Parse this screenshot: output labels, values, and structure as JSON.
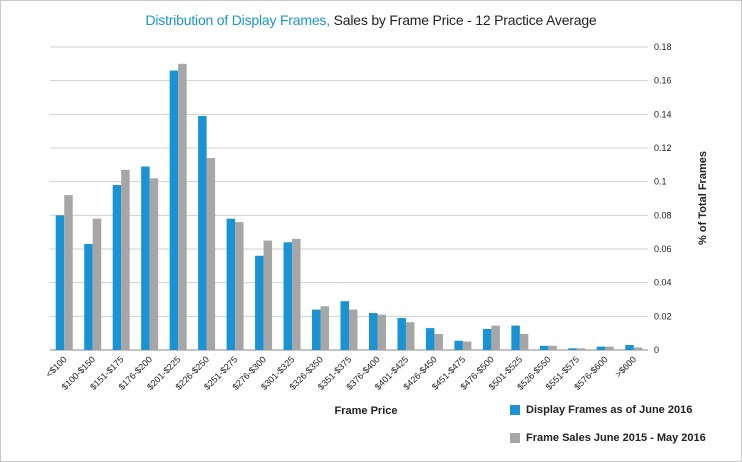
{
  "title": {
    "accent": "Distribution of Display Frames,",
    "rest": "Sales by Frame Price - 12 Practice Average"
  },
  "chart_data": {
    "type": "bar",
    "title": "Distribution of Display Frames, Sales by Frame Price - 12 Practice Average",
    "xlabel": "Frame Price",
    "ylabel": "% of Total Frames",
    "ylim": [
      0,
      0.18
    ],
    "yticks": [
      "0",
      "0.02",
      "0.04",
      "0.06",
      "0.08",
      "0.1",
      "0.12",
      "0.14",
      "0.16",
      "0.18"
    ],
    "y_axis_side": "right",
    "grid": true,
    "legend_position": "bottom-right",
    "categories": [
      "<$100",
      "$100-$150",
      "$151-$175",
      "$176-$200",
      "$201-$225",
      "$226-$250",
      "$251-$275",
      "$276-$300",
      "$301-$325",
      "$326-$350",
      "$351-$375",
      "$376-$400",
      "$401-$425",
      "$426-$450",
      "$451-$475",
      "$476-$500",
      "$501-$525",
      "$526-$550",
      "$551-$575",
      "$576-$600",
      ">$600"
    ],
    "series": [
      {
        "name": "Display Frames as of June 2016",
        "color": "#1a93d4",
        "values": [
          0.08,
          0.063,
          0.098,
          0.109,
          0.166,
          0.139,
          0.078,
          0.056,
          0.064,
          0.024,
          0.029,
          0.022,
          0.019,
          0.013,
          0.0055,
          0.0125,
          0.0145,
          0.0025,
          0.001,
          0.002,
          0.003
        ]
      },
      {
        "name": "Frame Sales June 2015 - May 2016",
        "color": "#a6a6a6",
        "values": [
          0.092,
          0.078,
          0.107,
          0.102,
          0.17,
          0.114,
          0.076,
          0.065,
          0.066,
          0.026,
          0.024,
          0.021,
          0.0165,
          0.0095,
          0.005,
          0.0145,
          0.0095,
          0.0025,
          0.001,
          0.002,
          0.0015
        ]
      }
    ]
  }
}
